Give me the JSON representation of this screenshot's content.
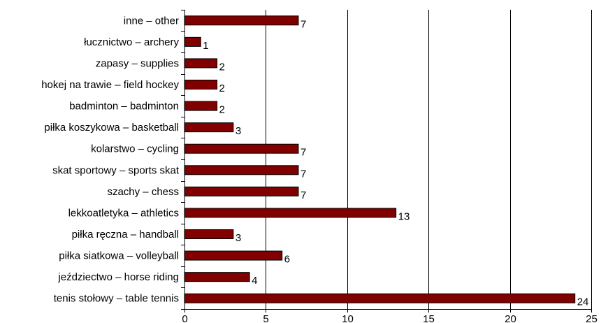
{
  "chart_data": {
    "type": "bar",
    "orientation": "horizontal",
    "title": "",
    "xlabel": "",
    "ylabel": "",
    "categories": [
      "inne – other",
      "łucznictwo – archery",
      "zapasy – supplies",
      "hokej na trawie – field hockey",
      "badminton – badminton",
      "piłka koszykowa – basketball",
      "kolarstwo – cycling",
      "skat sportowy – sports skat",
      "szachy – chess",
      "lekkoatletyka – athletics",
      "piłka ręczna – handball",
      "piłka siatkowa – volleyball",
      "jeździectwo – horse riding",
      "tenis stołowy – table tennis"
    ],
    "values": [
      7,
      1,
      2,
      2,
      2,
      3,
      7,
      7,
      7,
      13,
      3,
      6,
      4,
      24
    ],
    "xlim": [
      0,
      25
    ],
    "xticks": [
      0,
      5,
      10,
      15,
      20,
      25
    ],
    "grid": "vertical",
    "legend": "none",
    "colors": {
      "bar": "#800000",
      "grid": "#000000"
    }
  }
}
